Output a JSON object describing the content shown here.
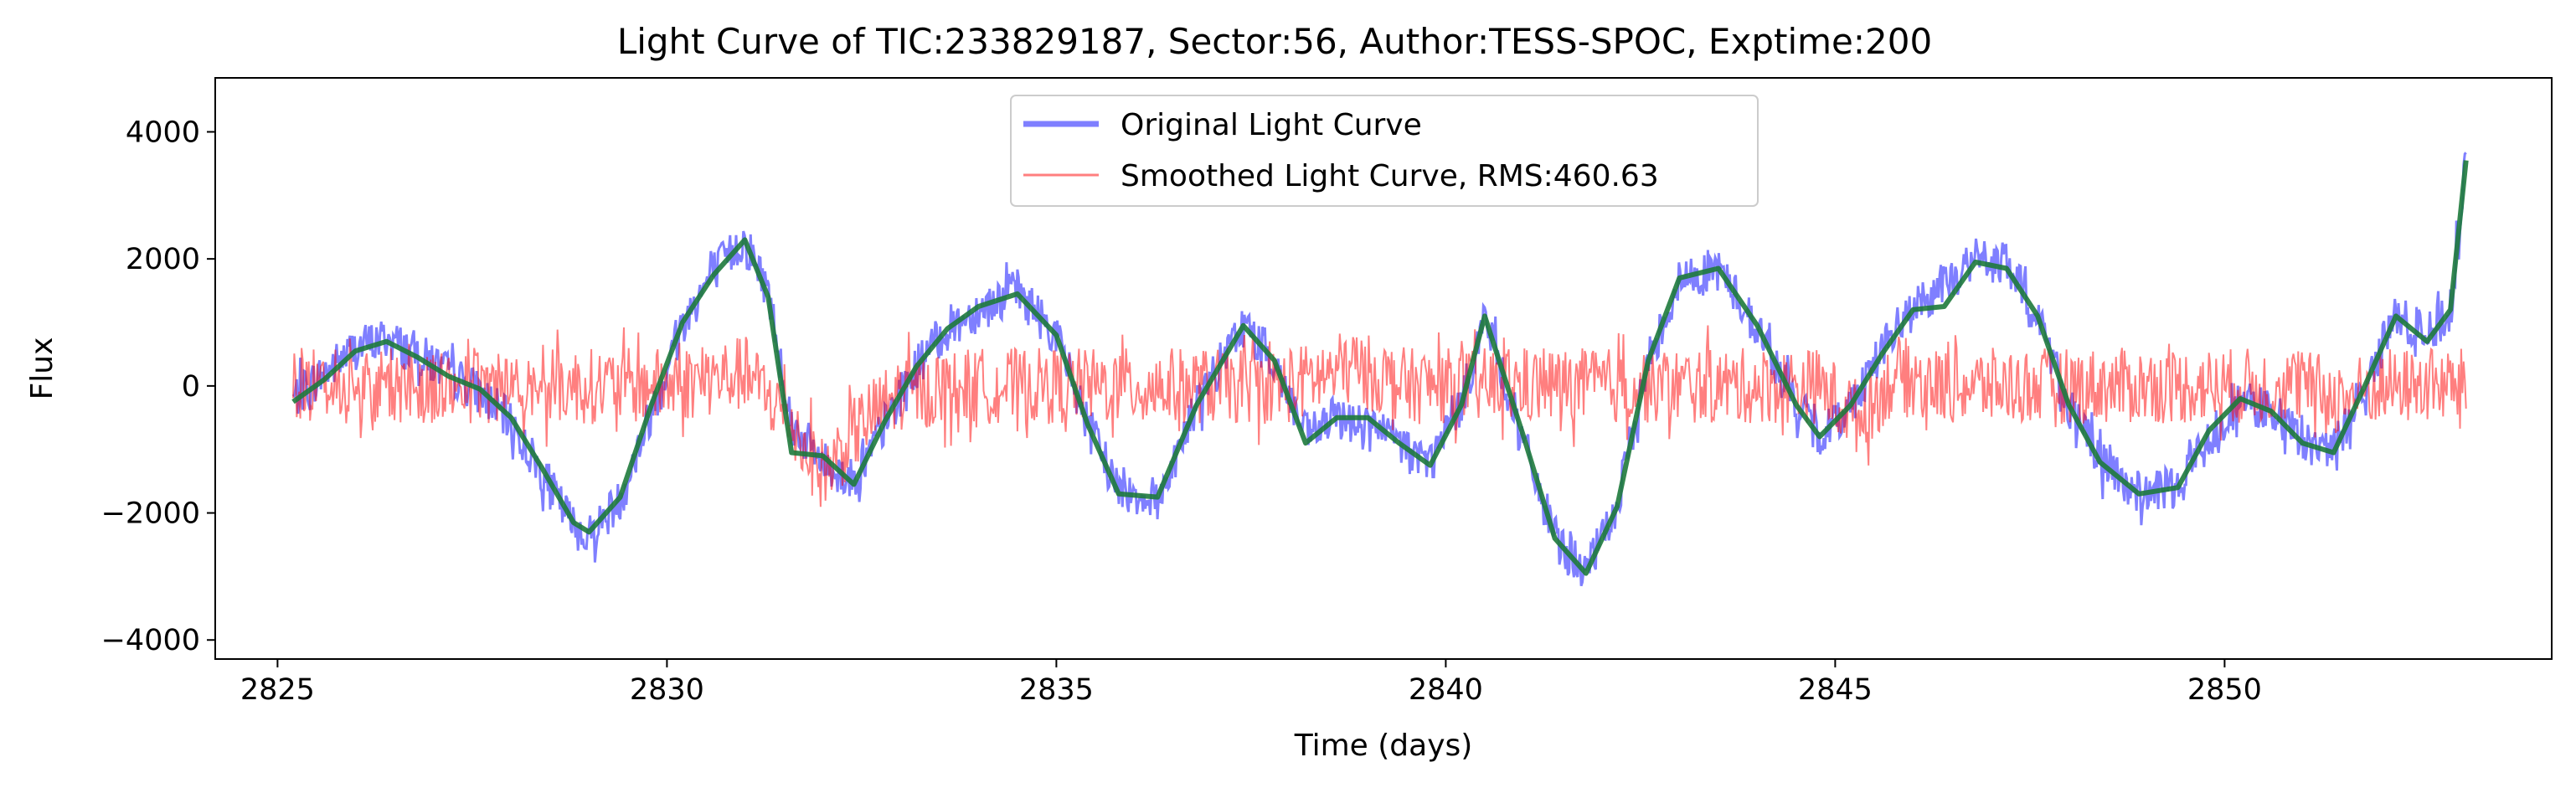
{
  "chart_data": {
    "type": "line",
    "title": "Light Curve of TIC:233829187, Sector:56, Author:TESS-SPOC, Exptime:200",
    "xlabel": "Time (days)",
    "ylabel": "Flux",
    "xlim": [
      2824.2,
      2854.2
    ],
    "ylim": [
      -4300,
      4850
    ],
    "x_ticks": [
      2825,
      2830,
      2835,
      2840,
      2845,
      2850
    ],
    "y_ticks": [
      -4000,
      -2000,
      0,
      2000,
      4000
    ],
    "y_tick_labels": [
      "−4000",
      "−2000",
      "0",
      "2000",
      "4000"
    ],
    "grid": false,
    "legend_position": "upper-center",
    "series": [
      {
        "name": "Original Light Curve",
        "color": "#0000ff",
        "opacity": 0.5,
        "style": "noisy-band",
        "x": [
          2825.2,
          2825.6,
          2826.0,
          2826.4,
          2826.8,
          2827.2,
          2827.6,
          2828.0,
          2828.4,
          2828.8,
          2829.0,
          2829.4,
          2829.8,
          2830.2,
          2830.6,
          2831.0,
          2831.3,
          2831.6,
          2832.0,
          2832.4,
          2832.8,
          2833.2,
          2833.6,
          2834.0,
          2834.5,
          2835.0,
          2835.4,
          2835.8,
          2836.3,
          2836.8,
          2837.4,
          2837.8,
          2838.2,
          2838.6,
          2839.0,
          2839.4,
          2839.8,
          2840.2,
          2840.5,
          2841.0,
          2841.4,
          2841.8,
          2842.2,
          2842.6,
          2843.0,
          2843.5,
          2844.0,
          2844.5,
          2844.8,
          2845.2,
          2845.6,
          2846.0,
          2846.4,
          2846.8,
          2847.2,
          2847.6,
          2848.0,
          2848.4,
          2848.9,
          2849.4,
          2849.8,
          2850.2,
          2850.6,
          2851.0,
          2851.4,
          2851.8,
          2852.2,
          2852.6,
          2852.9,
          2853.1
        ],
        "y": [
          -200,
          200,
          600,
          750,
          500,
          200,
          -100,
          -600,
          -1400,
          -2200,
          -2350,
          -1800,
          -400,
          1000,
          1800,
          2300,
          1500,
          -600,
          -1200,
          -1500,
          -600,
          300,
          900,
          1200,
          1500,
          800,
          -600,
          -1600,
          -1800,
          -300,
          950,
          400,
          -800,
          -500,
          -600,
          -900,
          -1200,
          -300,
          1100,
          -900,
          -2400,
          -2950,
          -1900,
          400,
          1650,
          1850,
          900,
          -300,
          -800,
          -300,
          600,
          1200,
          1600,
          2000,
          1900,
          1100,
          -300,
          -1200,
          -1700,
          -1600,
          -800,
          -250,
          -400,
          -900,
          -1000,
          0,
          1100,
          800,
          1200,
          3500
        ],
        "noise": 350
      },
      {
        "name": "Smoothed Light Curve, RMS:460.63",
        "color": "#ff0000",
        "opacity": 0.5,
        "style": "noisy-band",
        "x": [
          2825.2,
          2826.0,
          2827.0,
          2828.0,
          2829.0,
          2830.0,
          2831.0,
          2831.5,
          2832.0,
          2832.5,
          2833.0,
          2834.0,
          2835.0,
          2836.0,
          2837.0,
          2838.0,
          2838.8,
          2839.5,
          2840.0,
          2841.0,
          2842.0,
          2843.0,
          2844.0,
          2844.8,
          2845.3,
          2845.8,
          2846.3,
          2847.0,
          2848.0,
          2849.0,
          2850.0,
          2851.0,
          2851.5,
          2852.0,
          2853.1
        ],
        "y": [
          0,
          0,
          0,
          0,
          0,
          0,
          200,
          -400,
          -1400,
          -600,
          -100,
          0,
          0,
          0,
          0,
          0,
          300,
          0,
          0,
          0,
          0,
          0,
          0,
          0,
          -500,
          200,
          0,
          0,
          0,
          0,
          0,
          0,
          -200,
          0,
          0
        ],
        "noise": 600
      },
      {
        "name": "",
        "color": "#1e7a3c",
        "opacity": 0.9,
        "style": "line",
        "x": [
          2825.2,
          2825.6,
          2826.0,
          2826.4,
          2826.8,
          2827.2,
          2827.6,
          2828.0,
          2828.4,
          2828.8,
          2829.0,
          2829.4,
          2829.8,
          2830.2,
          2830.6,
          2831.0,
          2831.3,
          2831.6,
          2832.0,
          2832.4,
          2832.8,
          2833.2,
          2833.6,
          2834.0,
          2834.5,
          2835.0,
          2835.4,
          2835.8,
          2836.3,
          2836.8,
          2837.4,
          2837.8,
          2838.2,
          2838.6,
          2839.0,
          2839.4,
          2839.8,
          2840.2,
          2840.5,
          2841.0,
          2841.4,
          2841.8,
          2842.2,
          2842.6,
          2843.0,
          2843.5,
          2844.0,
          2844.5,
          2844.8,
          2845.2,
          2845.6,
          2846.0,
          2846.4,
          2846.8,
          2847.2,
          2847.6,
          2848.0,
          2848.4,
          2848.9,
          2849.4,
          2849.8,
          2850.2,
          2850.6,
          2851.0,
          2851.4,
          2851.8,
          2852.2,
          2852.6,
          2852.9,
          2853.1
        ],
        "y": [
          -250,
          100,
          550,
          700,
          450,
          150,
          -50,
          -500,
          -1300,
          -2150,
          -2300,
          -1750,
          -300,
          1000,
          1750,
          2300,
          1400,
          -1050,
          -1100,
          -1550,
          -550,
          300,
          900,
          1250,
          1450,
          800,
          -600,
          -1700,
          -1750,
          -300,
          950,
          400,
          -900,
          -500,
          -500,
          -900,
          -1250,
          -300,
          1100,
          -800,
          -2400,
          -2950,
          -1900,
          400,
          1700,
          1850,
          950,
          -300,
          -800,
          -300,
          500,
          1200,
          1250,
          1950,
          1850,
          1100,
          -300,
          -1200,
          -1700,
          -1600,
          -700,
          -200,
          -400,
          -900,
          -1050,
          0,
          1100,
          700,
          1200,
          3550
        ]
      }
    ]
  }
}
